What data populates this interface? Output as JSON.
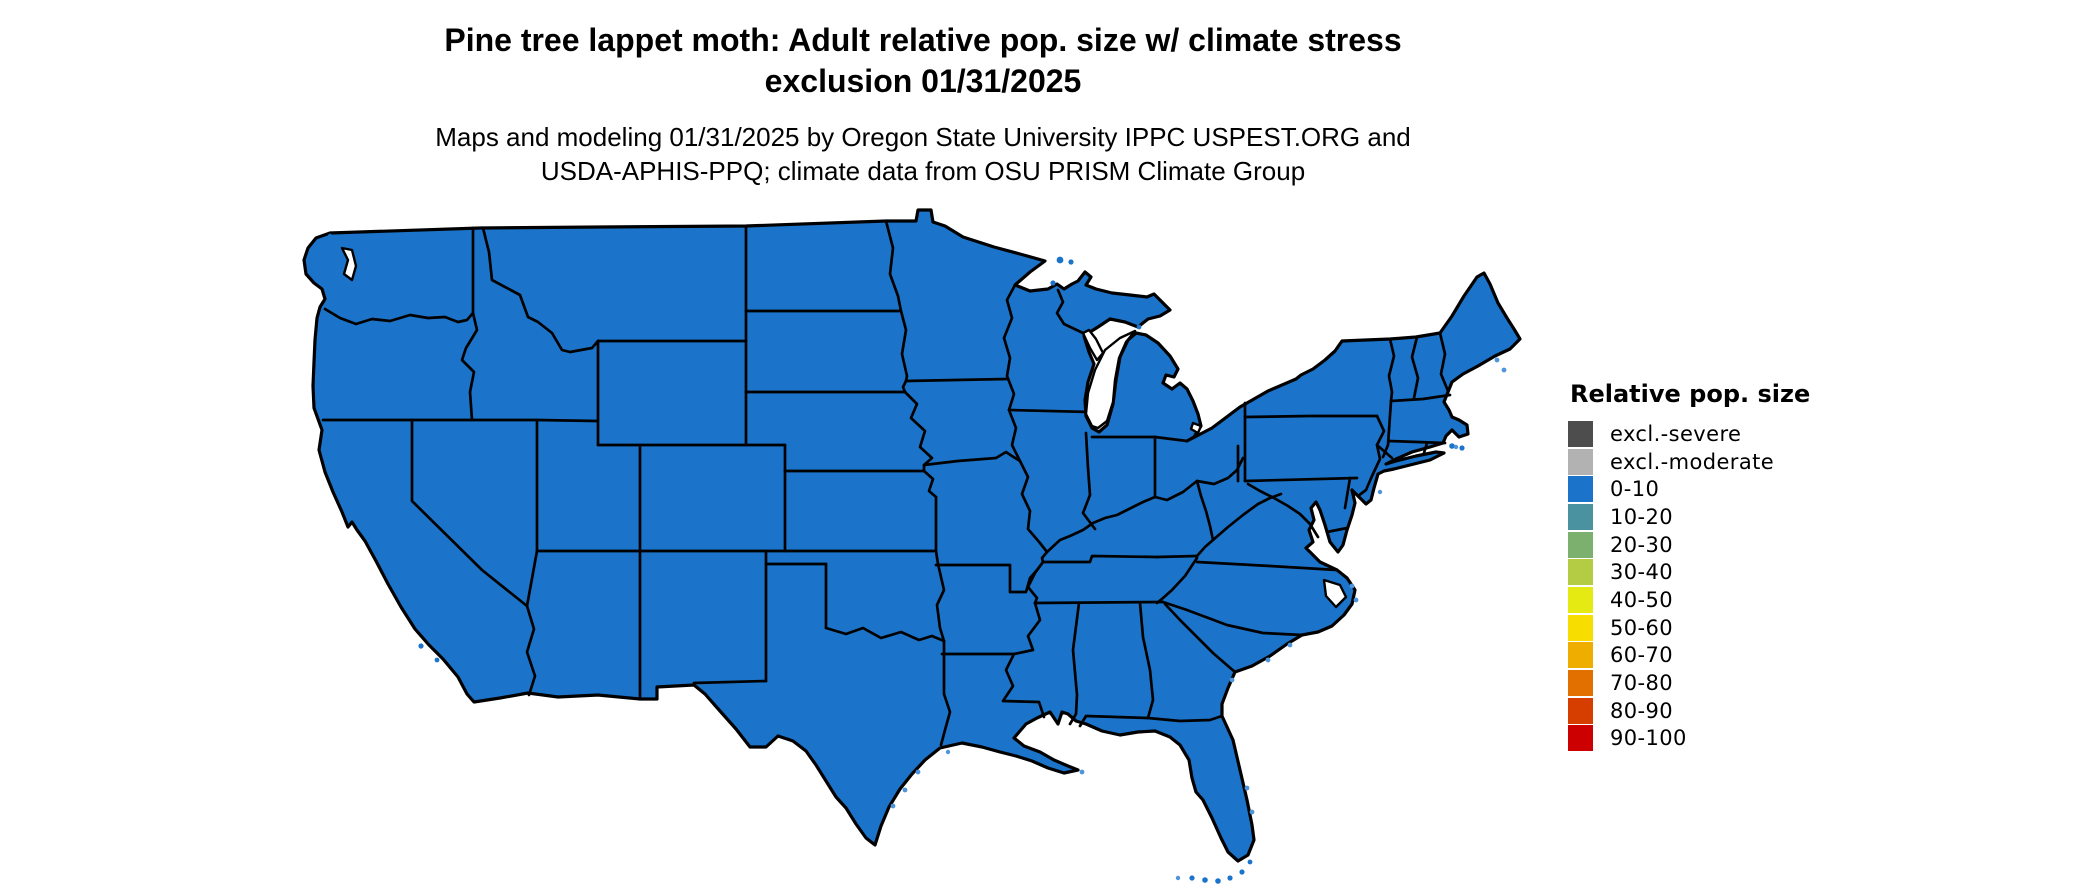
{
  "figure": {
    "title_line1": "Pine tree lappet moth: Adult relative pop. size w/ climate stress",
    "title_line2": "exclusion 01/31/2025",
    "subtitle_line1": "Maps and modeling 01/31/2025 by Oregon State University IPPC USPEST.ORG and",
    "subtitle_line2": "USDA-APHIS-PPQ; climate data from OSU PRISM Climate Group"
  },
  "map": {
    "region": "Contiguous United States",
    "fill_color": "#1B74C9",
    "border_color": "#000000",
    "water_color": "#FFFFFF",
    "coastal_speckle_color": "#4E95DC",
    "displayed_category_for_all_states": "0-10"
  },
  "legend": {
    "title": "Relative pop. size",
    "items": [
      {
        "label": "excl.-severe",
        "color": "#4D4D4D"
      },
      {
        "label": "excl.-moderate",
        "color": "#B2B2B2"
      },
      {
        "label": "0-10",
        "color": "#1B74C9"
      },
      {
        "label": "10-20",
        "color": "#4A92A0"
      },
      {
        "label": "20-30",
        "color": "#7CB06E"
      },
      {
        "label": "30-40",
        "color": "#B4CC44"
      },
      {
        "label": "40-50",
        "color": "#E6EA13"
      },
      {
        "label": "50-60",
        "color": "#F8DE00"
      },
      {
        "label": "60-70",
        "color": "#EFAD00"
      },
      {
        "label": "70-80",
        "color": "#E17000"
      },
      {
        "label": "80-90",
        "color": "#D63E00"
      },
      {
        "label": "90-100",
        "color": "#CC0000"
      }
    ]
  },
  "chart_data": {
    "type": "choropleth-map",
    "title": "Pine tree lappet moth: Adult relative pop. size w/ climate stress exclusion 01/31/2025",
    "legend_title": "Relative pop. size",
    "classes": [
      "excl.-severe",
      "excl.-moderate",
      "0-10",
      "10-20",
      "20-30",
      "30-40",
      "40-50",
      "50-60",
      "60-70",
      "70-80",
      "80-90",
      "90-100"
    ],
    "class_colors": [
      "#4D4D4D",
      "#B2B2B2",
      "#1B74C9",
      "#4A92A0",
      "#7CB06E",
      "#B4CC44",
      "#E6EA13",
      "#F8DE00",
      "#EFAD00",
      "#E17000",
      "#D63E00",
      "#CC0000"
    ],
    "observation": "Entire contiguous United States rendered in the 0-10 relative population size class (blue); Great Lakes and ocean shown white"
  }
}
